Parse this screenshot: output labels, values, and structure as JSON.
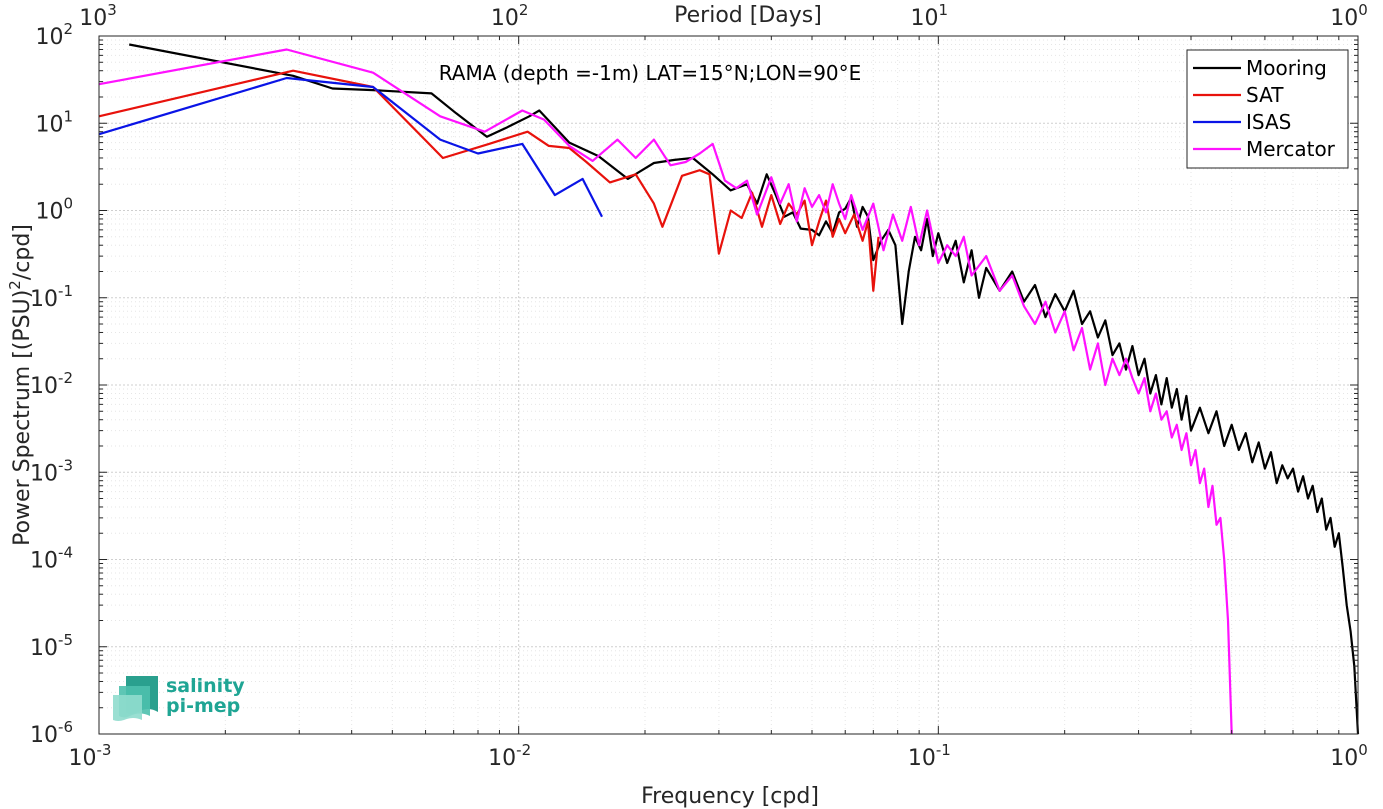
{
  "chart_data": {
    "type": "line",
    "title": "RAMA (depth =-1m) LAT=15°N;LON=90°E",
    "xlabel": "Frequency [cpd]",
    "ylabel": "Power Spectrum [(PSU)²/cpd]",
    "ylabel_parts": {
      "pre": "Power Spectrum [(PSU)",
      "sup": "2",
      "post": "/cpd]"
    },
    "top_xlabel": "Period [Days]",
    "xscale": "log",
    "yscale": "log",
    "xlim": [
      0.001,
      1
    ],
    "ylim": [
      1e-06,
      100
    ],
    "grid": true,
    "legend_position": "top-right",
    "x_ticks": [
      {
        "value": 0.001,
        "base": "10",
        "exp": "-3"
      },
      {
        "value": 0.01,
        "base": "10",
        "exp": "-2"
      },
      {
        "value": 0.1,
        "base": "10",
        "exp": "-1"
      },
      {
        "value": 1,
        "base": "10",
        "exp": "0"
      }
    ],
    "y_ticks": [
      {
        "value": 1e-06,
        "base": "10",
        "exp": "-6"
      },
      {
        "value": 1e-05,
        "base": "10",
        "exp": "-5"
      },
      {
        "value": 0.0001,
        "base": "10",
        "exp": "-4"
      },
      {
        "value": 0.001,
        "base": "10",
        "exp": "-3"
      },
      {
        "value": 0.01,
        "base": "10",
        "exp": "-2"
      },
      {
        "value": 0.1,
        "base": "10",
        "exp": "-1"
      },
      {
        "value": 1,
        "base": "10",
        "exp": "0"
      },
      {
        "value": 10,
        "base": "10",
        "exp": "1"
      },
      {
        "value": 100,
        "base": "10",
        "exp": "2"
      }
    ],
    "top_ticks": [
      {
        "period": 1000,
        "base": "10",
        "exp": "3"
      },
      {
        "period": 100,
        "base": "10",
        "exp": "2"
      },
      {
        "period": 10,
        "base": "10",
        "exp": "1"
      },
      {
        "period": 1,
        "base": "10",
        "exp": "0"
      }
    ],
    "series": [
      {
        "name": "Mooring",
        "color": "#000000",
        "points": [
          [
            0.00118,
            80
          ],
          [
            0.0029,
            35
          ],
          [
            0.0036,
            25
          ],
          [
            0.0045,
            24
          ],
          [
            0.0062,
            22
          ],
          [
            0.0071,
            13
          ],
          [
            0.0084,
            7
          ],
          [
            0.0094,
            9
          ],
          [
            0.0106,
            12
          ],
          [
            0.0112,
            14
          ],
          [
            0.0132,
            6
          ],
          [
            0.0155,
            4.2
          ],
          [
            0.0182,
            2.3
          ],
          [
            0.021,
            3.5
          ],
          [
            0.0235,
            3.8
          ],
          [
            0.026,
            4
          ],
          [
            0.029,
            2.6
          ],
          [
            0.032,
            1.7
          ],
          [
            0.035,
            2
          ],
          [
            0.037,
            1.2
          ],
          [
            0.039,
            2.6
          ],
          [
            0.041,
            1.5
          ],
          [
            0.043,
            0.85
          ],
          [
            0.045,
            0.95
          ],
          [
            0.047,
            0.62
          ],
          [
            0.05,
            0.6
          ],
          [
            0.052,
            0.52
          ],
          [
            0.054,
            0.75
          ],
          [
            0.056,
            0.55
          ],
          [
            0.058,
            0.95
          ],
          [
            0.06,
            1.05
          ],
          [
            0.062,
            1.4
          ],
          [
            0.064,
            0.65
          ],
          [
            0.066,
            1.1
          ],
          [
            0.068,
            0.85
          ],
          [
            0.07,
            0.27
          ],
          [
            0.073,
            0.45
          ],
          [
            0.076,
            0.6
          ],
          [
            0.079,
            0.4
          ],
          [
            0.082,
            0.05
          ],
          [
            0.085,
            0.2
          ],
          [
            0.088,
            0.5
          ],
          [
            0.091,
            0.35
          ],
          [
            0.094,
            0.8
          ],
          [
            0.097,
            0.3
          ],
          [
            0.1,
            0.55
          ],
          [
            0.105,
            0.25
          ],
          [
            0.11,
            0.45
          ],
          [
            0.115,
            0.15
          ],
          [
            0.12,
            0.35
          ],
          [
            0.125,
            0.1
          ],
          [
            0.13,
            0.22
          ],
          [
            0.14,
            0.12
          ],
          [
            0.15,
            0.2
          ],
          [
            0.16,
            0.09
          ],
          [
            0.17,
            0.14
          ],
          [
            0.18,
            0.06
          ],
          [
            0.19,
            0.11
          ],
          [
            0.2,
            0.07
          ],
          [
            0.21,
            0.12
          ],
          [
            0.22,
            0.05
          ],
          [
            0.23,
            0.07
          ],
          [
            0.24,
            0.035
          ],
          [
            0.25,
            0.055
          ],
          [
            0.26,
            0.022
          ],
          [
            0.27,
            0.03
          ],
          [
            0.28,
            0.015
          ],
          [
            0.29,
            0.028
          ],
          [
            0.3,
            0.013
          ],
          [
            0.31,
            0.02
          ],
          [
            0.32,
            0.008
          ],
          [
            0.33,
            0.013
          ],
          [
            0.34,
            0.006
          ],
          [
            0.35,
            0.012
          ],
          [
            0.36,
            0.0055
          ],
          [
            0.37,
            0.009
          ],
          [
            0.38,
            0.004
          ],
          [
            0.39,
            0.0075
          ],
          [
            0.4,
            0.003
          ],
          [
            0.42,
            0.0055
          ],
          [
            0.44,
            0.0028
          ],
          [
            0.46,
            0.005
          ],
          [
            0.48,
            0.002
          ],
          [
            0.5,
            0.0035
          ],
          [
            0.52,
            0.0018
          ],
          [
            0.54,
            0.0028
          ],
          [
            0.56,
            0.0013
          ],
          [
            0.58,
            0.0022
          ],
          [
            0.6,
            0.0011
          ],
          [
            0.62,
            0.0017
          ],
          [
            0.64,
            0.00075
          ],
          [
            0.66,
            0.0012
          ],
          [
            0.68,
            0.00085
          ],
          [
            0.7,
            0.0011
          ],
          [
            0.72,
            0.0006
          ],
          [
            0.74,
            0.0009
          ],
          [
            0.76,
            0.0005
          ],
          [
            0.78,
            0.0007
          ],
          [
            0.8,
            0.00035
          ],
          [
            0.82,
            0.0005
          ],
          [
            0.84,
            0.00022
          ],
          [
            0.86,
            0.0003
          ],
          [
            0.88,
            0.00014
          ],
          [
            0.9,
            0.0002
          ],
          [
            0.92,
            8e-05
          ],
          [
            0.94,
            3e-05
          ],
          [
            0.96,
            1.5e-05
          ],
          [
            0.98,
            6e-06
          ],
          [
            1.0,
            1e-06
          ]
        ]
      },
      {
        "name": "SAT",
        "color": "#e8120c",
        "points": [
          [
            0.001,
            12
          ],
          [
            0.0029,
            40
          ],
          [
            0.0045,
            26
          ],
          [
            0.0066,
            4
          ],
          [
            0.0085,
            5.8
          ],
          [
            0.0105,
            8
          ],
          [
            0.0118,
            5.5
          ],
          [
            0.0132,
            5.2
          ],
          [
            0.0145,
            3.6
          ],
          [
            0.0165,
            2.1
          ],
          [
            0.019,
            2.6
          ],
          [
            0.021,
            1.2
          ],
          [
            0.022,
            0.65
          ],
          [
            0.0245,
            2.5
          ],
          [
            0.027,
            2.9
          ],
          [
            0.0285,
            2.6
          ],
          [
            0.03,
            0.32
          ],
          [
            0.032,
            1
          ],
          [
            0.034,
            0.82
          ],
          [
            0.036,
            1.6
          ],
          [
            0.038,
            0.65
          ],
          [
            0.04,
            1.5
          ],
          [
            0.042,
            0.7
          ],
          [
            0.044,
            1.2
          ],
          [
            0.046,
            0.9
          ],
          [
            0.048,
            1.3
          ],
          [
            0.05,
            0.4
          ],
          [
            0.052,
            0.75
          ],
          [
            0.054,
            1.3
          ],
          [
            0.056,
            0.5
          ],
          [
            0.058,
            0.8
          ],
          [
            0.06,
            0.55
          ],
          [
            0.063,
            0.9
          ],
          [
            0.066,
            0.45
          ],
          [
            0.068,
            0.75
          ],
          [
            0.07,
            0.12
          ],
          [
            0.072,
            0.5
          ]
        ]
      },
      {
        "name": "ISAS",
        "color": "#0a14e6",
        "points": [
          [
            0.001,
            7.5
          ],
          [
            0.0028,
            33
          ],
          [
            0.0045,
            26
          ],
          [
            0.0065,
            6.5
          ],
          [
            0.008,
            4.5
          ],
          [
            0.0102,
            5.8
          ],
          [
            0.0122,
            1.5
          ],
          [
            0.0142,
            2.3
          ],
          [
            0.0158,
            0.85
          ]
        ]
      },
      {
        "name": "Mercator",
        "color": "#ff12ff",
        "points": [
          [
            0.001,
            28
          ],
          [
            0.0028,
            70
          ],
          [
            0.0045,
            38
          ],
          [
            0.0065,
            12
          ],
          [
            0.0083,
            8
          ],
          [
            0.0102,
            14
          ],
          [
            0.0115,
            11
          ],
          [
            0.0132,
            5.5
          ],
          [
            0.015,
            3.7
          ],
          [
            0.0172,
            6.5
          ],
          [
            0.019,
            4
          ],
          [
            0.021,
            6.5
          ],
          [
            0.023,
            3.3
          ],
          [
            0.025,
            3.6
          ],
          [
            0.027,
            4.5
          ],
          [
            0.029,
            5.8
          ],
          [
            0.031,
            2.2
          ],
          [
            0.033,
            1.8
          ],
          [
            0.035,
            2.2
          ],
          [
            0.037,
            0.9
          ],
          [
            0.04,
            2.4
          ],
          [
            0.042,
            1.2
          ],
          [
            0.044,
            2
          ],
          [
            0.046,
            0.75
          ],
          [
            0.048,
            1.8
          ],
          [
            0.05,
            1.1
          ],
          [
            0.052,
            1.5
          ],
          [
            0.054,
            0.95
          ],
          [
            0.056,
            2
          ],
          [
            0.058,
            1.2
          ],
          [
            0.06,
            0.8
          ],
          [
            0.062,
            1.5
          ],
          [
            0.066,
            0.6
          ],
          [
            0.07,
            1.2
          ],
          [
            0.074,
            0.35
          ],
          [
            0.078,
            0.9
          ],
          [
            0.082,
            0.45
          ],
          [
            0.086,
            1.1
          ],
          [
            0.09,
            0.4
          ],
          [
            0.094,
            1
          ],
          [
            0.1,
            0.25
          ],
          [
            0.105,
            0.4
          ],
          [
            0.11,
            0.3
          ],
          [
            0.115,
            0.5
          ],
          [
            0.12,
            0.18
          ],
          [
            0.13,
            0.3
          ],
          [
            0.14,
            0.12
          ],
          [
            0.15,
            0.18
          ],
          [
            0.16,
            0.08
          ],
          [
            0.17,
            0.05
          ],
          [
            0.18,
            0.09
          ],
          [
            0.19,
            0.04
          ],
          [
            0.2,
            0.07
          ],
          [
            0.21,
            0.025
          ],
          [
            0.22,
            0.045
          ],
          [
            0.23,
            0.015
          ],
          [
            0.24,
            0.03
          ],
          [
            0.25,
            0.01
          ],
          [
            0.26,
            0.02
          ],
          [
            0.27,
            0.013
          ],
          [
            0.28,
            0.02
          ],
          [
            0.29,
            0.012
          ],
          [
            0.3,
            0.008
          ],
          [
            0.31,
            0.012
          ],
          [
            0.32,
            0.005
          ],
          [
            0.33,
            0.008
          ],
          [
            0.34,
            0.004
          ],
          [
            0.35,
            0.005
          ],
          [
            0.36,
            0.0025
          ],
          [
            0.37,
            0.0035
          ],
          [
            0.38,
            0.0018
          ],
          [
            0.39,
            0.0028
          ],
          [
            0.4,
            0.0012
          ],
          [
            0.41,
            0.0018
          ],
          [
            0.42,
            0.00075
          ],
          [
            0.43,
            0.0011
          ],
          [
            0.44,
            0.0004
          ],
          [
            0.45,
            0.0007
          ],
          [
            0.46,
            0.00025
          ],
          [
            0.47,
            0.0003
          ],
          [
            0.48,
            0.0001
          ],
          [
            0.49,
            2e-05
          ],
          [
            0.5,
            1e-06
          ]
        ]
      }
    ]
  },
  "logo": {
    "line1": "salinity",
    "line2": "pi-mep"
  }
}
